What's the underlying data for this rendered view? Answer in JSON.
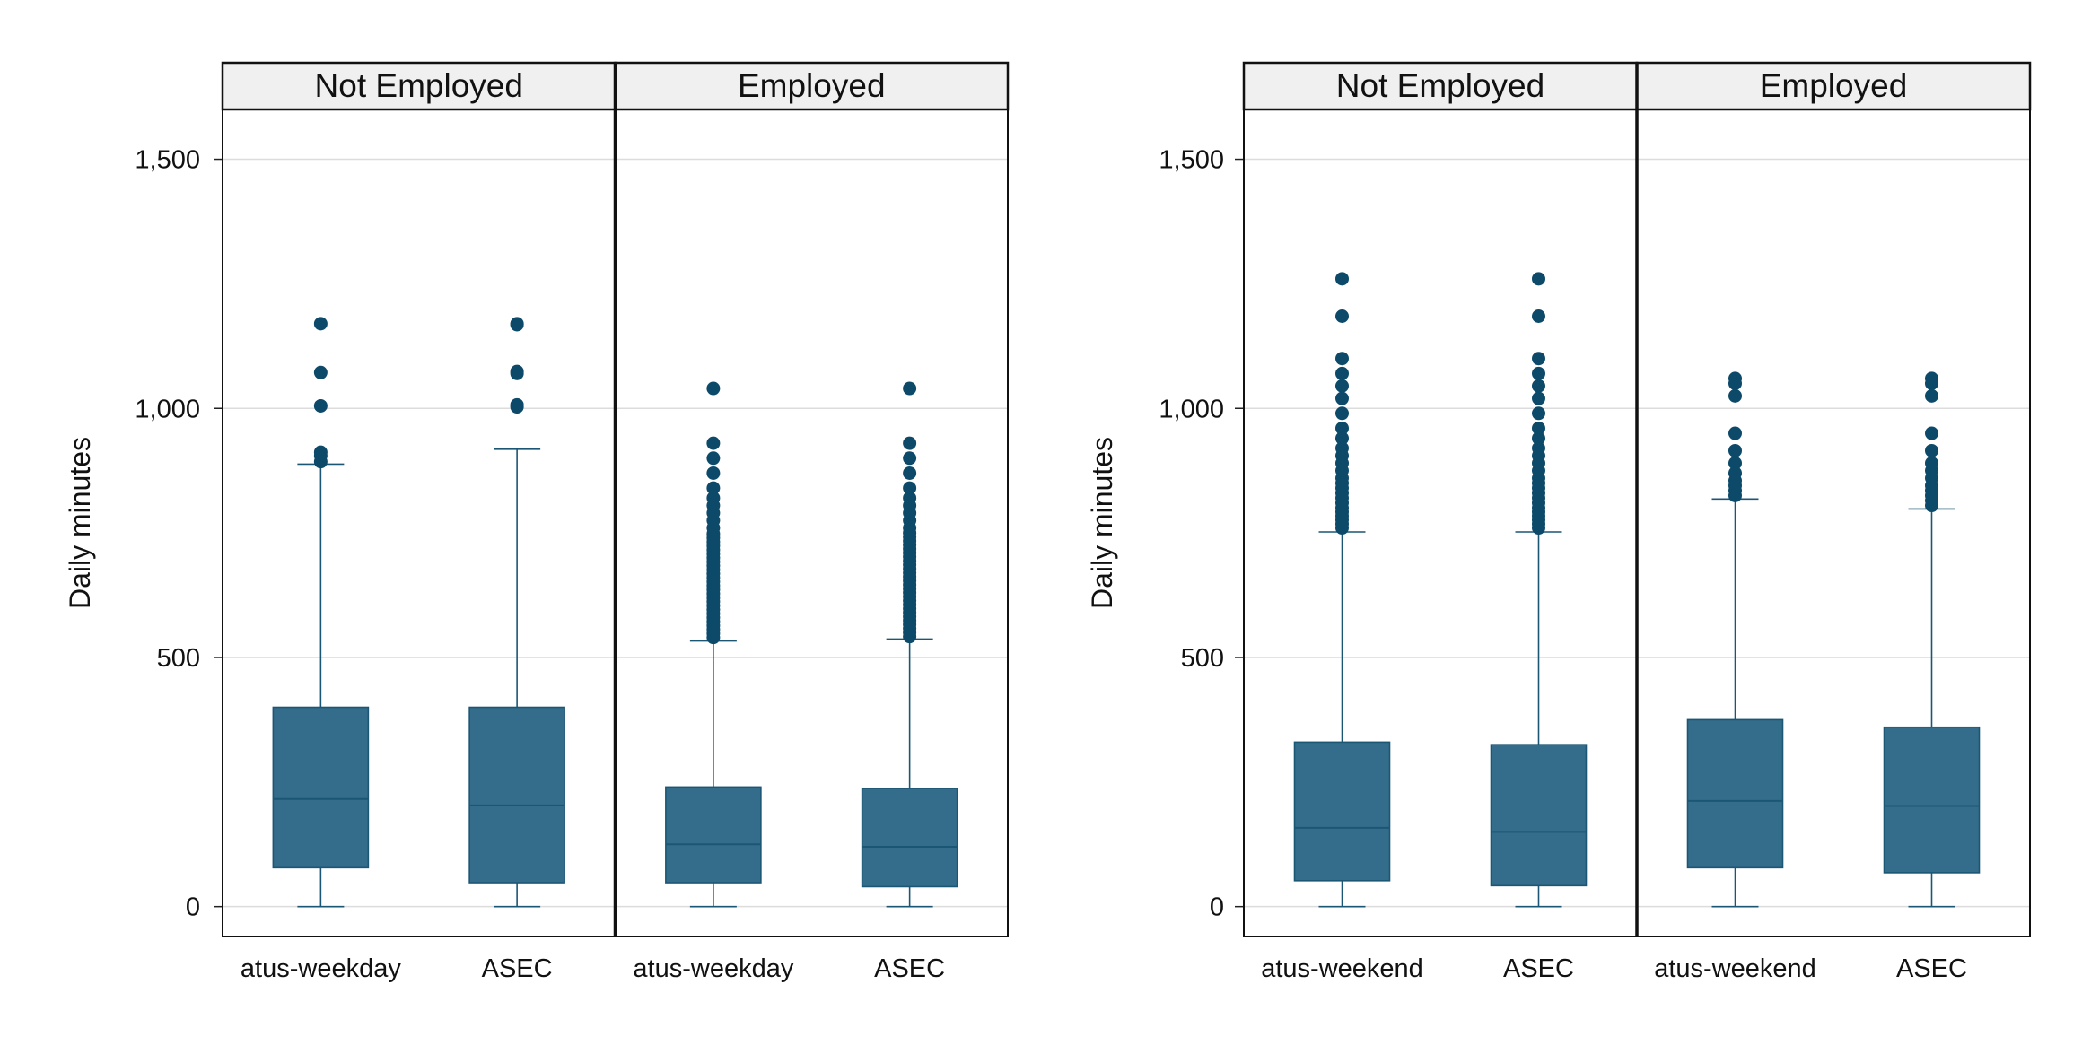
{
  "colors": {
    "box_fill": "#346d8b",
    "box_stroke": "#1c5675",
    "outlier": "#0d4a6a",
    "strip_bg": "#f0f0f0",
    "grid": "#dcdcdc"
  },
  "chart_data": [
    {
      "type": "box",
      "ylabel": "Daily minutes",
      "ylim": [
        -60,
        1600
      ],
      "yticks": [
        0,
        500,
        1000,
        1500
      ],
      "ytick_labels": [
        "0",
        "500",
        "1,000",
        "1,500"
      ],
      "grid": true,
      "panels": [
        {
          "title": "Not Employed",
          "categories": [
            "atus-weekday",
            "ASEC"
          ],
          "boxes": [
            {
              "min": 0,
              "q1": 78,
              "median": 216,
              "q3": 400,
              "max": 888,
              "outliers": [
                893,
                905,
                912,
                1005,
                1072,
                1170
              ]
            },
            {
              "min": 0,
              "q1": 48,
              "median": 203,
              "q3": 400,
              "max": 918,
              "outliers": [
                1003,
                1007,
                1070,
                1074,
                1168,
                1170
              ]
            }
          ]
        },
        {
          "title": "Employed",
          "categories": [
            "atus-weekday",
            "ASEC"
          ],
          "boxes": [
            {
              "min": 0,
              "q1": 48,
              "median": 125,
              "q3": 240,
              "max": 533,
              "outliers": [
                540,
                548,
                556,
                564,
                572,
                580,
                588,
                596,
                604,
                612,
                620,
                628,
                636,
                644,
                652,
                660,
                668,
                676,
                684,
                692,
                700,
                708,
                716,
                724,
                732,
                740,
                748,
                760,
                775,
                790,
                805,
                820,
                840,
                870,
                900,
                930,
                1040
              ]
            },
            {
              "min": 0,
              "q1": 40,
              "median": 120,
              "q3": 237,
              "max": 537,
              "outliers": [
                542,
                550,
                558,
                566,
                574,
                582,
                590,
                598,
                606,
                614,
                622,
                630,
                638,
                646,
                654,
                662,
                670,
                678,
                686,
                694,
                702,
                710,
                718,
                726,
                734,
                742,
                750,
                760,
                775,
                790,
                805,
                820,
                840,
                870,
                900,
                930,
                1040
              ]
            }
          ]
        }
      ]
    },
    {
      "type": "box",
      "ylabel": "Daily minutes",
      "ylim": [
        -60,
        1600
      ],
      "yticks": [
        0,
        500,
        1000,
        1500
      ],
      "ytick_labels": [
        "0",
        "500",
        "1,000",
        "1,500"
      ],
      "grid": true,
      "panels": [
        {
          "title": "Not Employed",
          "categories": [
            "atus-weekend",
            "ASEC"
          ],
          "boxes": [
            {
              "min": 0,
              "q1": 52,
              "median": 158,
              "q3": 330,
              "max": 752,
              "outliers": [
                760,
                768,
                776,
                784,
                792,
                800,
                810,
                820,
                830,
                840,
                850,
                860,
                875,
                890,
                905,
                920,
                940,
                960,
                990,
                1020,
                1045,
                1070,
                1100,
                1185,
                1260
              ]
            },
            {
              "min": 0,
              "q1": 42,
              "median": 150,
              "q3": 325,
              "max": 752,
              "outliers": [
                760,
                768,
                776,
                784,
                792,
                800,
                810,
                820,
                830,
                840,
                850,
                860,
                875,
                890,
                905,
                920,
                940,
                960,
                990,
                1020,
                1045,
                1070,
                1100,
                1185,
                1260
              ]
            }
          ]
        },
        {
          "title": "Employed",
          "categories": [
            "atus-weekend",
            "ASEC"
          ],
          "boxes": [
            {
              "min": 0,
              "q1": 78,
              "median": 212,
              "q3": 375,
              "max": 818,
              "outliers": [
                825,
                835,
                845,
                855,
                870,
                890,
                915,
                950,
                1025,
                1050,
                1060
              ]
            },
            {
              "min": 0,
              "q1": 68,
              "median": 202,
              "q3": 360,
              "max": 798,
              "outliers": [
                805,
                815,
                825,
                835,
                845,
                860,
                875,
                890,
                915,
                950,
                1025,
                1050,
                1060
              ]
            }
          ]
        }
      ]
    }
  ]
}
